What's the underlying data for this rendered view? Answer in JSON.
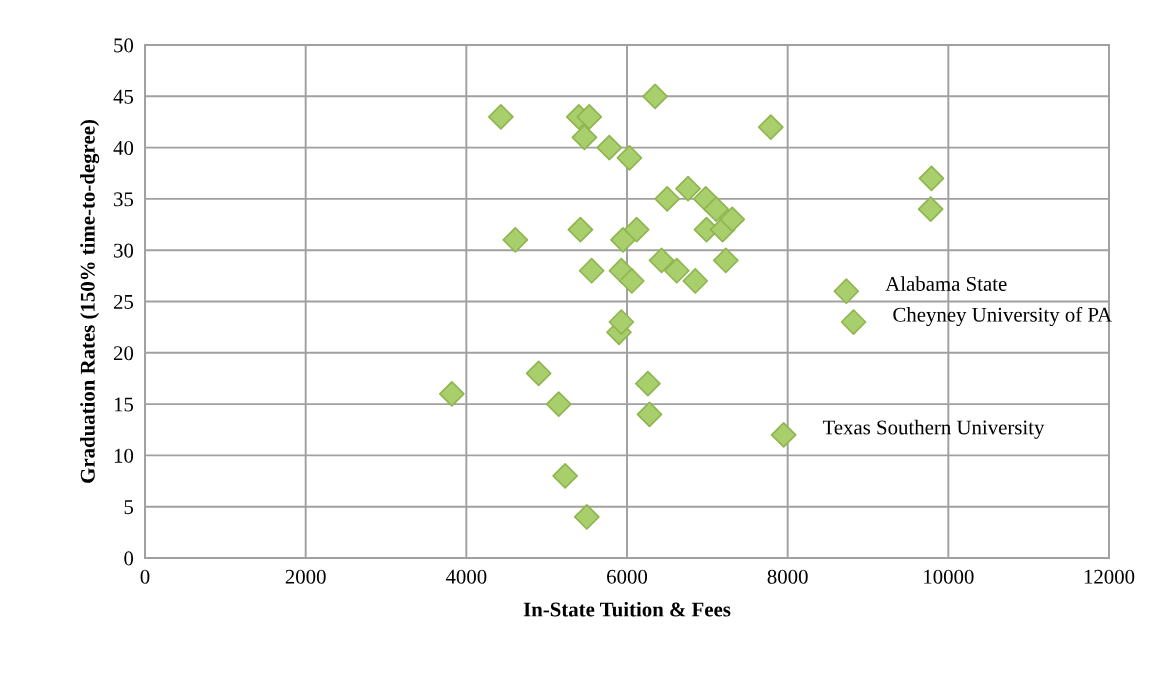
{
  "chart_data": {
    "type": "scatter",
    "xlabel": "In-State Tuition & Fees",
    "ylabel": "Graduation Rates (150% time-to-degree)",
    "x": [
      3820,
      4430,
      4610,
      4900,
      5150,
      5230,
      5400,
      5420,
      5470,
      5500,
      5530,
      5560,
      5780,
      5900,
      5930,
      5930,
      5950,
      6030,
      6060,
      6120,
      6260,
      6280,
      6350,
      6430,
      6500,
      6620,
      6760,
      6850,
      6980,
      6990,
      7110,
      7190,
      7230,
      7310,
      7790,
      7950,
      8730,
      8820,
      9790,
      9780
    ],
    "values": [
      16,
      43,
      31,
      18,
      15,
      8,
      43,
      32,
      41,
      4,
      43,
      28,
      40,
      22,
      23,
      28,
      31,
      39,
      27,
      32,
      17,
      14,
      45,
      29,
      35,
      28,
      36,
      27,
      35,
      32,
      34,
      32,
      29,
      33,
      42,
      12,
      26,
      23,
      37,
      34
    ],
    "color": "#a9cf6c",
    "marker": "diamond",
    "grid": true,
    "legend": false,
    "xlim": [
      0,
      12000
    ],
    "xticks": [
      0,
      2000,
      4000,
      6000,
      8000,
      10000,
      12000
    ],
    "ylim": [
      0,
      50
    ],
    "yticks": [
      0,
      5,
      10,
      15,
      20,
      25,
      30,
      35,
      40,
      45,
      50
    ],
    "annotations": [
      {
        "text": "Alabama State",
        "x": 8730,
        "y": 26
      },
      {
        "text": "Cheyney University of PA",
        "x": 8820,
        "y": 23
      },
      {
        "text": "Texas Southern University",
        "x": 7950,
        "y": 12
      }
    ]
  }
}
